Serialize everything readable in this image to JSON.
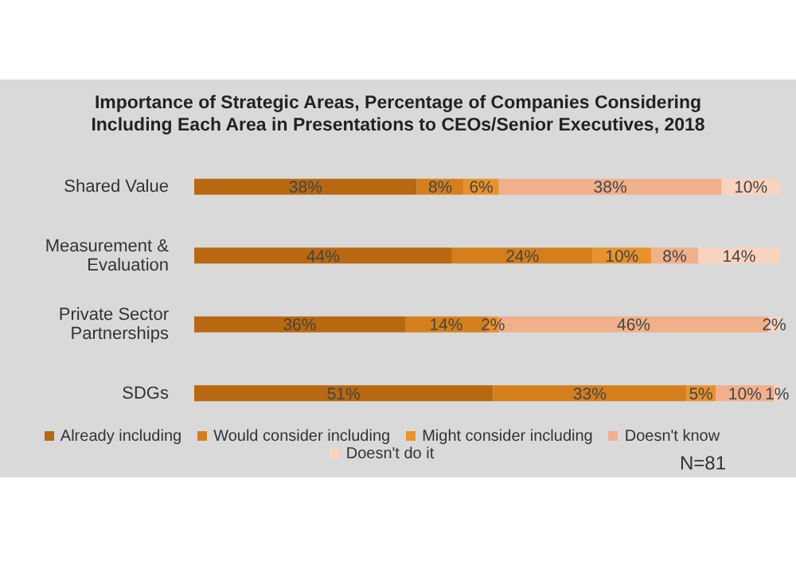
{
  "chart_data": {
    "type": "bar",
    "orientation": "horizontal",
    "stacked": true,
    "title": "Importance of Strategic Areas, Percentage of Companies Considering Including Each Area in Presentations to CEOs/Senior Executives, 2018",
    "categories": [
      "Shared Value",
      "Measurement & Evaluation",
      "Private Sector Partnerships",
      "SDGs"
    ],
    "series": [
      {
        "name": "Already including",
        "color": "#b8680f",
        "values": [
          38,
          44,
          36,
          51
        ],
        "value_labels": [
          "38%",
          "44%",
          "36%",
          "51%"
        ]
      },
      {
        "name": "Would consider including",
        "color": "#d47f1c",
        "values": [
          8,
          24,
          14,
          33
        ],
        "value_labels": [
          "8%",
          "24%",
          "14%",
          "33%"
        ]
      },
      {
        "name": "Might consider including",
        "color": "#e8922c",
        "values": [
          6,
          10,
          2,
          5
        ],
        "value_labels": [
          "6%",
          "10%",
          "2%",
          "5%"
        ]
      },
      {
        "name": "Doesn't know",
        "color": "#f0b08a",
        "values": [
          38,
          8,
          46,
          10
        ],
        "value_labels": [
          "38%",
          "8%",
          "46%",
          "10%"
        ]
      },
      {
        "name": "Doesn't do it",
        "color": "#f8d4bf",
        "values": [
          10,
          14,
          2,
          1
        ],
        "value_labels": [
          "10%",
          "14%",
          "2%",
          "1%"
        ]
      }
    ],
    "legend": "bottom",
    "annotations": [
      "N=81"
    ]
  }
}
